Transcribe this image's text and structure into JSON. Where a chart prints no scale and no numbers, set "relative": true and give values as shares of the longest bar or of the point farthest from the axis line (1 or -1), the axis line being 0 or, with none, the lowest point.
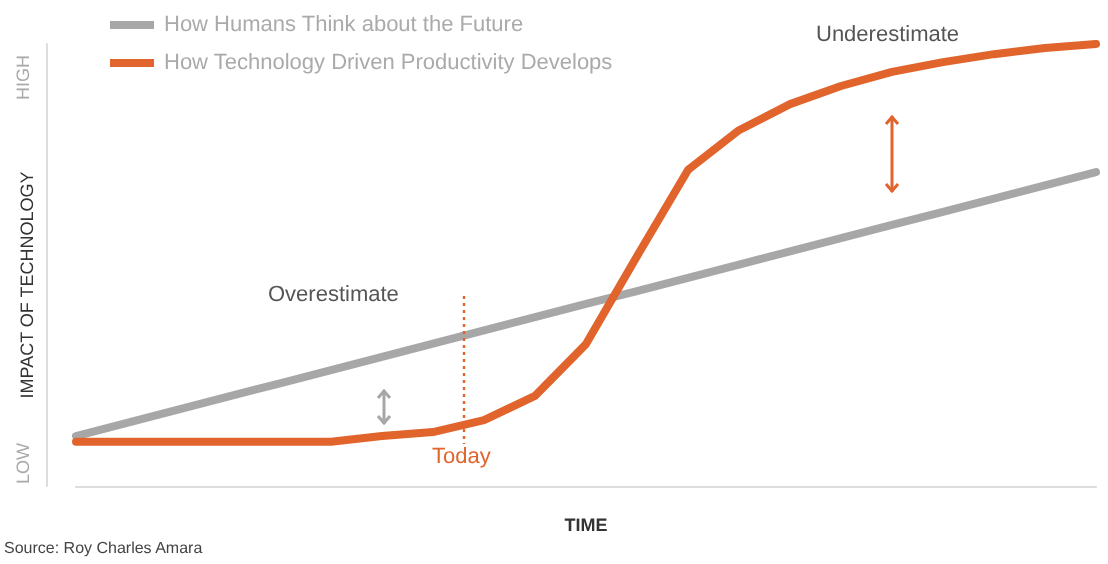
{
  "chart_data": {
    "type": "line",
    "relative": true,
    "ylabel": "IMPACT OF TECHNOLOGY",
    "xlabel": "TIME",
    "categories": [
      null,
      null,
      null,
      null,
      null,
      null,
      null,
      null,
      null,
      null,
      null,
      null,
      null,
      null,
      null,
      null,
      null,
      null,
      null,
      null,
      null
    ],
    "series": [
      {
        "name": "How Humans Think about the Future",
        "color": "#a7a7a7",
        "values": [
          0.113,
          0.143,
          0.173,
          0.203,
          0.232,
          0.262,
          0.292,
          0.322,
          0.352,
          0.382,
          0.412,
          0.441,
          0.471,
          0.501,
          0.531,
          0.561,
          0.591,
          0.62,
          0.65,
          0.68,
          0.71
        ]
      },
      {
        "name": "How Technology Driven Productivity Develops",
        "color": "#e0642c",
        "values": [
          0.1,
          0.1,
          0.1,
          0.1,
          0.1,
          0.1,
          0.113,
          0.122,
          0.149,
          0.204,
          0.321,
          0.52,
          0.715,
          0.805,
          0.864,
          0.905,
          0.937,
          0.959,
          0.977,
          0.991,
          1.0
        ]
      }
    ],
    "annotations": [
      "HIGH",
      "LOW",
      "Overestimate",
      "Underestimate",
      "Source: Roy Charles Amara",
      "Today"
    ],
    "legend": "top left",
    "marker": "none",
    "line_style": "solid",
    "grid": false
  }
}
